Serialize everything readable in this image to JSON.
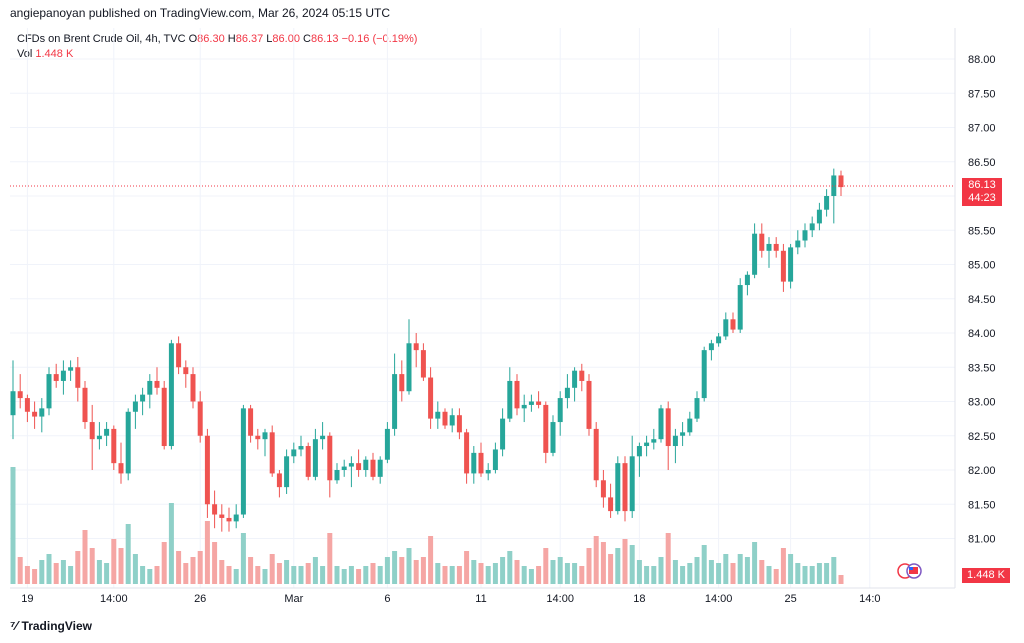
{
  "header": {
    "published": "angiepanoyan published on TradingView.com, Mar 26, 2024 05:15 UTC"
  },
  "legend": {
    "symbol": "CFDs on Brent Crude Oil, 4h, TVC",
    "o_label": "O",
    "o_value": "86.30",
    "h_label": "H",
    "h_value": "86.37",
    "l_label": "L",
    "l_value": "86.00",
    "c_label": "C",
    "c_value": "86.13",
    "change": "−0.16 (−0.19%)",
    "vol_label": "Vol",
    "vol_value": "1.448 K"
  },
  "price_tag": {
    "price": "86.13",
    "countdown": "44:23"
  },
  "vol_tag": "1.448 K",
  "footer": {
    "brand": "TradingView"
  },
  "colors": {
    "up": "#26a69a",
    "down": "#ef5350",
    "vol_up": "#8fd0c8",
    "vol_down": "#f5a6a4",
    "grid": "#f0f3fa",
    "axis_text": "#131722"
  },
  "chart_data": {
    "type": "candlestick",
    "symbol": "CFDs on Brent Crude Oil, 4h, TVC",
    "y_ticks": [
      "81.00",
      "81.50",
      "82.00",
      "82.50",
      "83.00",
      "83.50",
      "84.00",
      "84.50",
      "85.00",
      "85.50",
      "86.00",
      "86.50",
      "87.00",
      "87.50",
      "88.00"
    ],
    "ylim": [
      80.55,
      88.2
    ],
    "x_ticks": [
      {
        "label": "19",
        "index": 2
      },
      {
        "label": "14:00",
        "index": 14
      },
      {
        "label": "26",
        "index": 26
      },
      {
        "label": "Mar",
        "index": 39
      },
      {
        "label": "6",
        "index": 52
      },
      {
        "label": "11",
        "index": 65
      },
      {
        "label": "14:00",
        "index": 76
      },
      {
        "label": "18",
        "index": 87
      },
      {
        "label": "14:00",
        "index": 98
      },
      {
        "label": "25",
        "index": 108
      },
      {
        "label": "14:0",
        "index": 119
      }
    ],
    "candles": [
      {
        "o": 82.8,
        "h": 83.6,
        "l": 82.45,
        "c": 83.15,
        "v": 1.95
      },
      {
        "o": 83.15,
        "h": 83.4,
        "l": 82.9,
        "c": 83.05,
        "v": 0.45
      },
      {
        "o": 83.05,
        "h": 83.1,
        "l": 82.7,
        "c": 82.85,
        "v": 0.3
      },
      {
        "o": 82.85,
        "h": 83.0,
        "l": 82.6,
        "c": 82.78,
        "v": 0.25
      },
      {
        "o": 82.78,
        "h": 83.05,
        "l": 82.55,
        "c": 82.9,
        "v": 0.4
      },
      {
        "o": 82.9,
        "h": 83.5,
        "l": 82.8,
        "c": 83.4,
        "v": 0.5
      },
      {
        "o": 83.4,
        "h": 83.55,
        "l": 83.2,
        "c": 83.3,
        "v": 0.35
      },
      {
        "o": 83.3,
        "h": 83.6,
        "l": 83.1,
        "c": 83.45,
        "v": 0.4
      },
      {
        "o": 83.45,
        "h": 83.6,
        "l": 83.3,
        "c": 83.5,
        "v": 0.3
      },
      {
        "o": 83.5,
        "h": 83.65,
        "l": 83.0,
        "c": 83.2,
        "v": 0.55
      },
      {
        "o": 83.2,
        "h": 83.3,
        "l": 82.6,
        "c": 82.7,
        "v": 0.9
      },
      {
        "o": 82.7,
        "h": 82.95,
        "l": 82.0,
        "c": 82.45,
        "v": 0.6
      },
      {
        "o": 82.45,
        "h": 82.7,
        "l": 82.3,
        "c": 82.5,
        "v": 0.4
      },
      {
        "o": 82.5,
        "h": 82.7,
        "l": 82.35,
        "c": 82.6,
        "v": 0.35
      },
      {
        "o": 82.6,
        "h": 82.65,
        "l": 82.0,
        "c": 82.1,
        "v": 0.75
      },
      {
        "o": 82.1,
        "h": 82.4,
        "l": 81.8,
        "c": 81.95,
        "v": 0.6
      },
      {
        "o": 81.95,
        "h": 82.9,
        "l": 81.85,
        "c": 82.85,
        "v": 1.0
      },
      {
        "o": 82.85,
        "h": 83.1,
        "l": 82.6,
        "c": 83.0,
        "v": 0.5
      },
      {
        "o": 83.0,
        "h": 83.2,
        "l": 82.8,
        "c": 83.1,
        "v": 0.3
      },
      {
        "o": 83.1,
        "h": 83.4,
        "l": 82.9,
        "c": 83.3,
        "v": 0.25
      },
      {
        "o": 83.3,
        "h": 83.5,
        "l": 83.1,
        "c": 83.2,
        "v": 0.3
      },
      {
        "o": 83.2,
        "h": 83.3,
        "l": 82.3,
        "c": 82.35,
        "v": 0.7
      },
      {
        "o": 82.35,
        "h": 83.9,
        "l": 82.3,
        "c": 83.85,
        "v": 1.35
      },
      {
        "o": 83.85,
        "h": 83.95,
        "l": 83.4,
        "c": 83.5,
        "v": 0.55
      },
      {
        "o": 83.5,
        "h": 83.6,
        "l": 83.2,
        "c": 83.4,
        "v": 0.35
      },
      {
        "o": 83.4,
        "h": 83.5,
        "l": 82.9,
        "c": 83.0,
        "v": 0.45
      },
      {
        "o": 83.0,
        "h": 83.15,
        "l": 82.4,
        "c": 82.5,
        "v": 0.55
      },
      {
        "o": 82.5,
        "h": 82.6,
        "l": 81.3,
        "c": 81.5,
        "v": 1.05
      },
      {
        "o": 81.5,
        "h": 81.7,
        "l": 81.15,
        "c": 81.35,
        "v": 0.7
      },
      {
        "o": 81.35,
        "h": 81.5,
        "l": 81.1,
        "c": 81.3,
        "v": 0.4
      },
      {
        "o": 81.3,
        "h": 81.45,
        "l": 81.1,
        "c": 81.25,
        "v": 0.3
      },
      {
        "o": 81.25,
        "h": 81.5,
        "l": 81.15,
        "c": 81.35,
        "v": 0.25
      },
      {
        "o": 81.35,
        "h": 82.95,
        "l": 81.3,
        "c": 82.9,
        "v": 0.85
      },
      {
        "o": 82.9,
        "h": 82.95,
        "l": 82.4,
        "c": 82.5,
        "v": 0.45
      },
      {
        "o": 82.5,
        "h": 82.6,
        "l": 82.3,
        "c": 82.45,
        "v": 0.3
      },
      {
        "o": 82.45,
        "h": 82.6,
        "l": 82.2,
        "c": 82.55,
        "v": 0.25
      },
      {
        "o": 82.55,
        "h": 82.65,
        "l": 81.9,
        "c": 81.95,
        "v": 0.5
      },
      {
        "o": 81.95,
        "h": 82.0,
        "l": 81.6,
        "c": 81.75,
        "v": 0.35
      },
      {
        "o": 81.75,
        "h": 82.3,
        "l": 81.65,
        "c": 82.2,
        "v": 0.4
      },
      {
        "o": 82.2,
        "h": 82.4,
        "l": 82.1,
        "c": 82.3,
        "v": 0.3
      },
      {
        "o": 82.3,
        "h": 82.5,
        "l": 82.2,
        "c": 82.35,
        "v": 0.3
      },
      {
        "o": 82.35,
        "h": 82.4,
        "l": 81.85,
        "c": 81.9,
        "v": 0.35
      },
      {
        "o": 81.9,
        "h": 82.6,
        "l": 81.85,
        "c": 82.45,
        "v": 0.45
      },
      {
        "o": 82.45,
        "h": 82.7,
        "l": 82.3,
        "c": 82.5,
        "v": 0.3
      },
      {
        "o": 82.5,
        "h": 82.55,
        "l": 81.6,
        "c": 81.85,
        "v": 0.85
      },
      {
        "o": 81.85,
        "h": 82.1,
        "l": 81.8,
        "c": 82.0,
        "v": 0.3
      },
      {
        "o": 82.0,
        "h": 82.15,
        "l": 81.9,
        "c": 82.05,
        "v": 0.25
      },
      {
        "o": 82.05,
        "h": 82.2,
        "l": 81.75,
        "c": 82.1,
        "v": 0.3
      },
      {
        "o": 82.1,
        "h": 82.3,
        "l": 81.9,
        "c": 82.0,
        "v": 0.25
      },
      {
        "o": 82.0,
        "h": 82.2,
        "l": 81.9,
        "c": 82.15,
        "v": 0.3
      },
      {
        "o": 82.15,
        "h": 82.25,
        "l": 81.85,
        "c": 81.9,
        "v": 0.35
      },
      {
        "o": 81.9,
        "h": 82.2,
        "l": 81.8,
        "c": 82.15,
        "v": 0.3
      },
      {
        "o": 82.15,
        "h": 82.7,
        "l": 82.1,
        "c": 82.6,
        "v": 0.45
      },
      {
        "o": 82.6,
        "h": 83.7,
        "l": 82.5,
        "c": 83.4,
        "v": 0.55
      },
      {
        "o": 83.4,
        "h": 83.6,
        "l": 83.0,
        "c": 83.15,
        "v": 0.45
      },
      {
        "o": 83.15,
        "h": 84.2,
        "l": 83.1,
        "c": 83.85,
        "v": 0.6
      },
      {
        "o": 83.85,
        "h": 84.0,
        "l": 83.5,
        "c": 83.75,
        "v": 0.4
      },
      {
        "o": 83.75,
        "h": 83.85,
        "l": 83.3,
        "c": 83.35,
        "v": 0.45
      },
      {
        "o": 83.35,
        "h": 83.5,
        "l": 82.6,
        "c": 82.75,
        "v": 0.8
      },
      {
        "o": 82.75,
        "h": 83.0,
        "l": 82.6,
        "c": 82.85,
        "v": 0.35
      },
      {
        "o": 82.85,
        "h": 82.9,
        "l": 82.6,
        "c": 82.65,
        "v": 0.3
      },
      {
        "o": 82.65,
        "h": 82.9,
        "l": 82.55,
        "c": 82.8,
        "v": 0.3
      },
      {
        "o": 82.8,
        "h": 82.9,
        "l": 82.45,
        "c": 82.55,
        "v": 0.3
      },
      {
        "o": 82.55,
        "h": 82.6,
        "l": 81.8,
        "c": 81.95,
        "v": 0.55
      },
      {
        "o": 81.95,
        "h": 82.35,
        "l": 81.8,
        "c": 82.25,
        "v": 0.4
      },
      {
        "o": 82.25,
        "h": 82.4,
        "l": 81.9,
        "c": 81.95,
        "v": 0.35
      },
      {
        "o": 81.95,
        "h": 82.1,
        "l": 81.85,
        "c": 82.0,
        "v": 0.3
      },
      {
        "o": 82.0,
        "h": 82.4,
        "l": 81.95,
        "c": 82.3,
        "v": 0.35
      },
      {
        "o": 82.3,
        "h": 82.9,
        "l": 82.2,
        "c": 82.75,
        "v": 0.45
      },
      {
        "o": 82.75,
        "h": 83.5,
        "l": 82.7,
        "c": 83.3,
        "v": 0.55
      },
      {
        "o": 83.3,
        "h": 83.4,
        "l": 82.8,
        "c": 82.9,
        "v": 0.4
      },
      {
        "o": 82.9,
        "h": 83.1,
        "l": 82.7,
        "c": 82.95,
        "v": 0.3
      },
      {
        "o": 82.95,
        "h": 83.1,
        "l": 82.85,
        "c": 83.0,
        "v": 0.25
      },
      {
        "o": 83.0,
        "h": 83.15,
        "l": 82.9,
        "c": 82.95,
        "v": 0.3
      },
      {
        "o": 82.95,
        "h": 83.0,
        "l": 82.1,
        "c": 82.25,
        "v": 0.6
      },
      {
        "o": 82.25,
        "h": 82.8,
        "l": 82.2,
        "c": 82.7,
        "v": 0.4
      },
      {
        "o": 82.7,
        "h": 83.15,
        "l": 82.5,
        "c": 83.05,
        "v": 0.45
      },
      {
        "o": 83.05,
        "h": 83.4,
        "l": 82.9,
        "c": 83.2,
        "v": 0.35
      },
      {
        "o": 83.2,
        "h": 83.5,
        "l": 83.0,
        "c": 83.45,
        "v": 0.35
      },
      {
        "o": 83.45,
        "h": 83.55,
        "l": 83.15,
        "c": 83.3,
        "v": 0.3
      },
      {
        "o": 83.3,
        "h": 83.4,
        "l": 82.5,
        "c": 82.6,
        "v": 0.6
      },
      {
        "o": 82.6,
        "h": 82.7,
        "l": 81.75,
        "c": 81.85,
        "v": 0.8
      },
      {
        "o": 81.85,
        "h": 82.0,
        "l": 81.45,
        "c": 81.6,
        "v": 0.7
      },
      {
        "o": 81.6,
        "h": 81.8,
        "l": 81.3,
        "c": 81.4,
        "v": 0.5
      },
      {
        "o": 81.4,
        "h": 82.2,
        "l": 81.35,
        "c": 82.1,
        "v": 0.6
      },
      {
        "o": 82.1,
        "h": 82.2,
        "l": 81.25,
        "c": 81.4,
        "v": 0.75
      },
      {
        "o": 81.4,
        "h": 82.5,
        "l": 81.3,
        "c": 82.2,
        "v": 0.65
      },
      {
        "o": 82.2,
        "h": 82.4,
        "l": 81.9,
        "c": 82.35,
        "v": 0.4
      },
      {
        "o": 82.35,
        "h": 82.5,
        "l": 82.2,
        "c": 82.4,
        "v": 0.3
      },
      {
        "o": 82.4,
        "h": 82.6,
        "l": 82.3,
        "c": 82.45,
        "v": 0.3
      },
      {
        "o": 82.45,
        "h": 82.95,
        "l": 82.4,
        "c": 82.9,
        "v": 0.45
      },
      {
        "o": 82.9,
        "h": 83.0,
        "l": 82.0,
        "c": 82.35,
        "v": 0.85
      },
      {
        "o": 82.35,
        "h": 82.6,
        "l": 82.1,
        "c": 82.5,
        "v": 0.4
      },
      {
        "o": 82.5,
        "h": 82.7,
        "l": 82.35,
        "c": 82.55,
        "v": 0.3
      },
      {
        "o": 82.55,
        "h": 82.85,
        "l": 82.5,
        "c": 82.75,
        "v": 0.35
      },
      {
        "o": 82.75,
        "h": 83.15,
        "l": 82.7,
        "c": 83.05,
        "v": 0.45
      },
      {
        "o": 83.05,
        "h": 83.8,
        "l": 83.0,
        "c": 83.75,
        "v": 0.65
      },
      {
        "o": 83.75,
        "h": 83.9,
        "l": 83.6,
        "c": 83.85,
        "v": 0.4
      },
      {
        "o": 83.85,
        "h": 84.0,
        "l": 83.8,
        "c": 83.95,
        "v": 0.35
      },
      {
        "o": 83.95,
        "h": 84.3,
        "l": 83.9,
        "c": 84.2,
        "v": 0.5
      },
      {
        "o": 84.2,
        "h": 84.3,
        "l": 84.0,
        "c": 84.05,
        "v": 0.35
      },
      {
        "o": 84.05,
        "h": 84.8,
        "l": 84.0,
        "c": 84.7,
        "v": 0.5
      },
      {
        "o": 84.7,
        "h": 84.9,
        "l": 84.55,
        "c": 84.85,
        "v": 0.45
      },
      {
        "o": 84.85,
        "h": 85.6,
        "l": 84.8,
        "c": 85.45,
        "v": 0.7
      },
      {
        "o": 85.45,
        "h": 85.6,
        "l": 85.1,
        "c": 85.2,
        "v": 0.4
      },
      {
        "o": 85.2,
        "h": 85.4,
        "l": 84.95,
        "c": 85.3,
        "v": 0.3
      },
      {
        "o": 85.3,
        "h": 85.4,
        "l": 85.1,
        "c": 85.2,
        "v": 0.25
      },
      {
        "o": 85.2,
        "h": 85.3,
        "l": 84.6,
        "c": 84.75,
        "v": 0.6
      },
      {
        "o": 84.75,
        "h": 85.3,
        "l": 84.65,
        "c": 85.25,
        "v": 0.5
      },
      {
        "o": 85.25,
        "h": 85.5,
        "l": 85.15,
        "c": 85.35,
        "v": 0.35
      },
      {
        "o": 85.35,
        "h": 85.6,
        "l": 85.25,
        "c": 85.5,
        "v": 0.3
      },
      {
        "o": 85.5,
        "h": 85.7,
        "l": 85.4,
        "c": 85.6,
        "v": 0.3
      },
      {
        "o": 85.6,
        "h": 85.9,
        "l": 85.5,
        "c": 85.8,
        "v": 0.35
      },
      {
        "o": 85.8,
        "h": 86.1,
        "l": 85.7,
        "c": 86.0,
        "v": 0.35
      },
      {
        "o": 86.0,
        "h": 86.4,
        "l": 85.6,
        "c": 86.3,
        "v": 0.45
      },
      {
        "o": 86.3,
        "h": 86.37,
        "l": 86.0,
        "c": 86.13,
        "v": 0.15
      }
    ]
  }
}
